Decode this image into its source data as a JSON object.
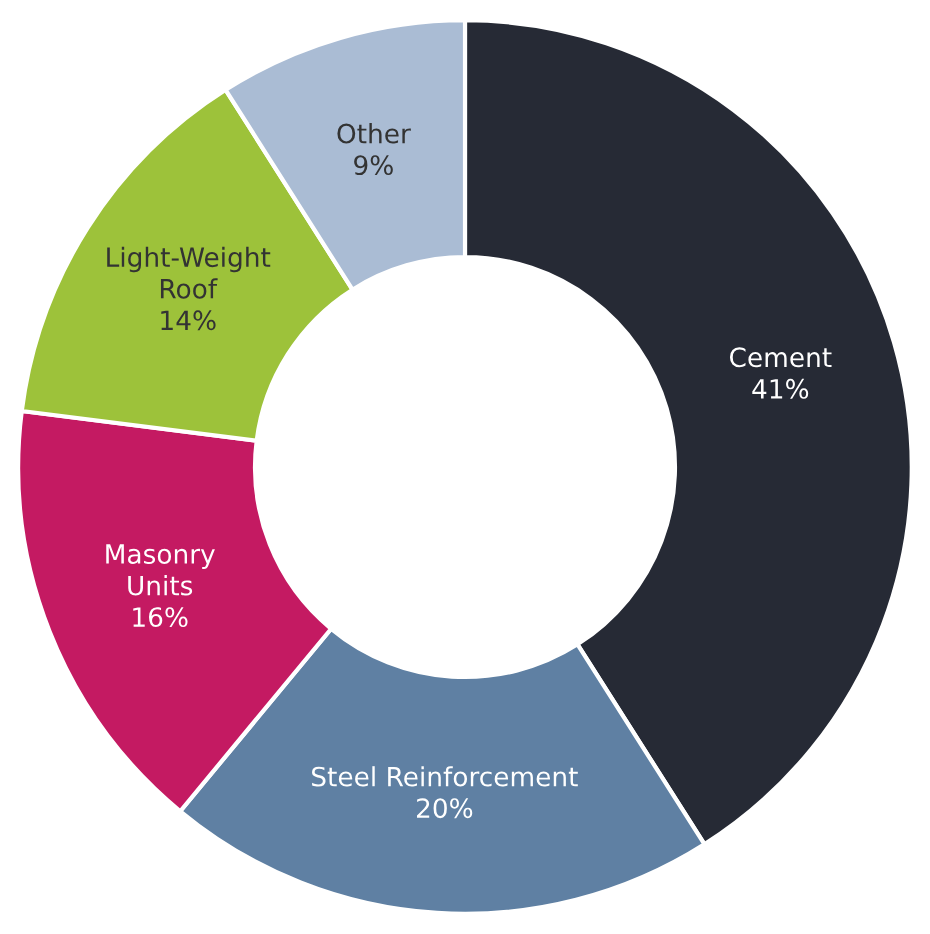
{
  "chart_data": {
    "type": "donut",
    "categories": [
      "Cement",
      "Steel Reinforcement",
      "Masonry\nUnits",
      "Light-Weight\nRoof",
      "Other"
    ],
    "values": [
      41,
      20,
      16,
      14,
      9
    ],
    "value_labels": [
      "41%",
      "20%",
      "16%",
      "14%",
      "9%"
    ],
    "colors": [
      "#262a35",
      "#5f80a3",
      "#c41a62",
      "#9dc23a",
      "#aabcd4"
    ],
    "legend": false
  }
}
